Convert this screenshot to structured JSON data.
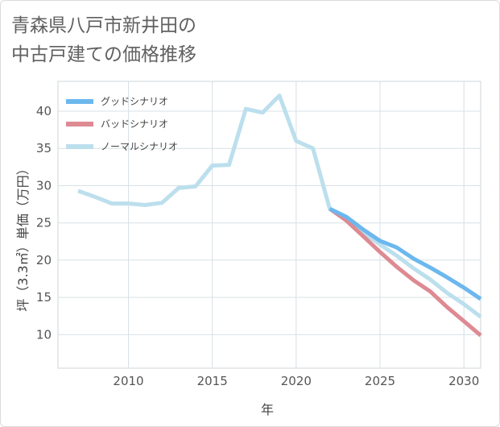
{
  "title": {
    "line1": "青森県八戸市新井田の",
    "line2": "中古戸建ての価格推移"
  },
  "chart_data": {
    "type": "line",
    "title": "青森県八戸市新井田の中古戸建ての価格推移",
    "xlabel": "年",
    "ylabel": "坪（3.3㎡）単価（万円）",
    "xlim": [
      2005.8,
      2031
    ],
    "ylim": [
      5.5,
      44
    ],
    "x_ticks": [
      2010,
      2015,
      2020,
      2025,
      2030
    ],
    "y_ticks": [
      10,
      15,
      20,
      25,
      30,
      35,
      40
    ],
    "grid": true,
    "legend_position": "top-left",
    "series": [
      {
        "name": "グッドシナリオ",
        "color": "#6cb8ee",
        "x": [
          2022,
          2023,
          2024,
          2025,
          2026,
          2027,
          2028,
          2029,
          2030,
          2031
        ],
        "y": [
          26.9,
          25.8,
          24.1,
          22.6,
          21.7,
          20.2,
          19.0,
          17.7,
          16.3,
          14.8
        ]
      },
      {
        "name": "バッドシナリオ",
        "color": "#de8a92",
        "x": [
          2022,
          2023,
          2024,
          2025,
          2026,
          2027,
          2028,
          2029,
          2030,
          2031
        ],
        "y": [
          26.9,
          25.3,
          23.2,
          21.1,
          19.1,
          17.3,
          15.8,
          13.7,
          11.8,
          9.9
        ]
      },
      {
        "name": "ノーマルシナリオ",
        "color": "#bcdfed",
        "x": [
          2007,
          2008,
          2009,
          2010,
          2011,
          2012,
          2013,
          2014,
          2015,
          2016,
          2017,
          2018,
          2019,
          2020,
          2021,
          2022,
          2023,
          2024,
          2025,
          2026,
          2027,
          2028,
          2029,
          2030,
          2031
        ],
        "y": [
          29.3,
          28.5,
          27.6,
          27.6,
          27.4,
          27.7,
          29.7,
          29.9,
          32.7,
          32.8,
          40.3,
          39.8,
          42.1,
          36.0,
          35.0,
          26.9,
          25.5,
          23.7,
          22.1,
          20.6,
          18.9,
          17.4,
          15.6,
          14.1,
          12.4
        ]
      }
    ]
  }
}
